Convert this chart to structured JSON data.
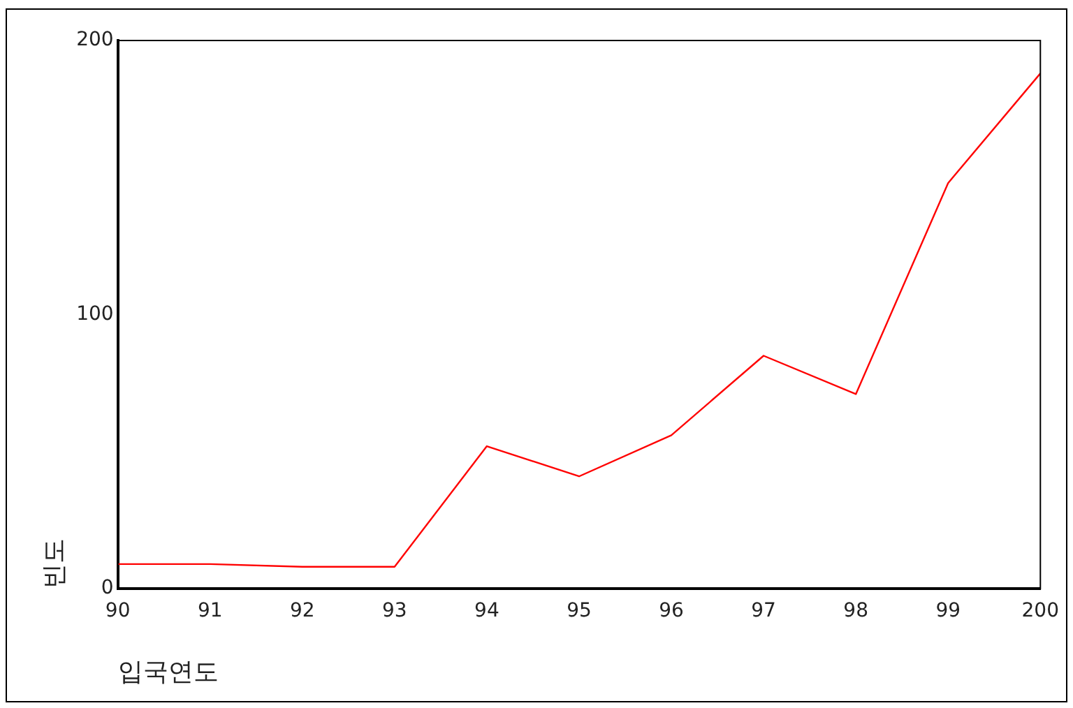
{
  "chart_data": {
    "type": "line",
    "xlabel": "입국연도",
    "ylabel": "빈도",
    "categories": [
      "90",
      "91",
      "92",
      "93",
      "94",
      "95",
      "96",
      "97",
      "98",
      "99",
      "200"
    ],
    "series": [
      {
        "color": "#ff0000",
        "values": [
          9,
          9,
          8,
          8,
          52,
          41,
          56,
          85,
          71,
          148,
          188
        ]
      }
    ],
    "ylim": [
      0,
      200
    ],
    "yticks": [
      0,
      100,
      200
    ],
    "grid": false,
    "legend": false,
    "marker": "none",
    "line_style": "solid"
  }
}
